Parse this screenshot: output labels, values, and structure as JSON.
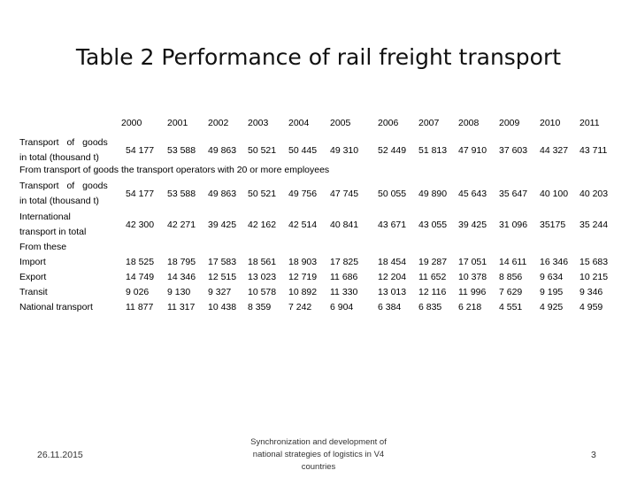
{
  "title": "Table 2 Performance of rail freight transport",
  "years": [
    "2000",
    "2001",
    "2002",
    "2003",
    "2004",
    "2005",
    "2006",
    "2007",
    "2008",
    "2009",
    "2010",
    "2011"
  ],
  "rows": [
    {
      "label_lines": [
        "Transport of goods",
        "in total (thousand t)"
      ],
      "values": [
        "54 177",
        "53 588",
        "49 863",
        "50 521",
        "50 445",
        "49 310",
        "52 449",
        "51 813",
        "47 910",
        "37 603",
        "44 327",
        "43 711"
      ]
    },
    {
      "wide": "From transport of goods the transport operators with 20 or more employees"
    },
    {
      "label_lines": [
        "Transport of goods",
        "in total (thousand t)"
      ],
      "values": [
        "54 177",
        "53 588",
        "49 863",
        "50 521",
        "49 756",
        "47 745",
        "50 055",
        "49 890",
        "45 643",
        "35 647",
        "40 100",
        "40 203"
      ]
    },
    {
      "label_lines": [
        "International",
        "transport in total"
      ],
      "values": [
        "42 300",
        "42 271",
        "39 425",
        "42 162",
        "42 514",
        "40 841",
        "43 671",
        "43 055",
        "39 425",
        "31 096",
        "35175",
        "35 244"
      ]
    },
    {
      "label_lines": [
        "From these"
      ],
      "values": []
    },
    {
      "label_lines": [
        "Import"
      ],
      "values": [
        "18 525",
        "18 795",
        "17 583",
        "18 561",
        "18 903",
        "17 825",
        "18 454",
        "19 287",
        "17 051",
        "14 611",
        "16 346",
        "15 683"
      ]
    },
    {
      "label_lines": [
        "Export"
      ],
      "values": [
        "14 749",
        "14 346",
        "12 515",
        "13 023",
        "12 719",
        "11 686",
        "12 204",
        "11 652",
        "10 378",
        "8 856",
        "9 634",
        "10 215"
      ]
    },
    {
      "label_lines": [
        "Transit"
      ],
      "values": [
        "9 026",
        "9 130",
        "9 327",
        "10 578",
        "10 892",
        "11 330",
        "13 013",
        "12 116",
        "11 996",
        "7 629",
        "9 195",
        "9 346"
      ]
    },
    {
      "label_lines": [
        "National transport"
      ],
      "values": [
        "11 877",
        "11 317",
        "10 438",
        "8 359",
        "7 242",
        "6 904",
        "6 384",
        "6 835",
        "6 218",
        "4 551",
        "4 925",
        "4 959"
      ]
    }
  ],
  "footer": {
    "date": "26.11.2015",
    "center_lines": [
      "Synchronization and development of",
      "national strategies of logistics in V4",
      "countries"
    ],
    "page": "3"
  }
}
